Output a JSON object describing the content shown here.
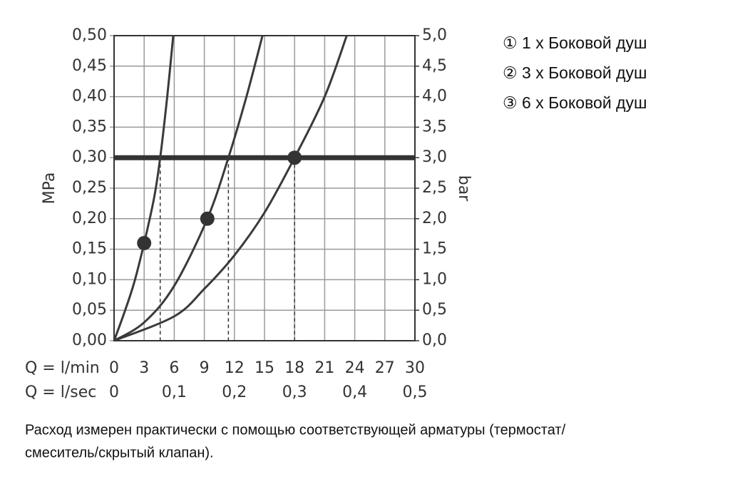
{
  "chart_data": {
    "type": "line",
    "x_label": "Q = l/min",
    "x2_label": "Q = l/sec",
    "y_label": "MPa",
    "y2_label": "bar",
    "xlim": [
      0,
      30
    ],
    "xticks": [
      0,
      3,
      6,
      9,
      12,
      15,
      18,
      21,
      24,
      27,
      30
    ],
    "x2lim": [
      0,
      0.5
    ],
    "x2ticks": [
      0,
      {
        "value": 0.1,
        "label": "0,1"
      },
      {
        "value": 0.2,
        "label": "0,2"
      },
      {
        "value": 0.3,
        "label": "0,3"
      },
      {
        "value": 0.4,
        "label": "0,4"
      },
      {
        "value": 0.5,
        "label": "0,5"
      }
    ],
    "ylim": [
      0,
      0.5
    ],
    "yticks": [
      {
        "value": 0,
        "label": "0,00"
      },
      {
        "value": 0.05,
        "label": "0,05"
      },
      {
        "value": 0.1,
        "label": "0,10"
      },
      {
        "value": 0.15,
        "label": "0,15"
      },
      {
        "value": 0.2,
        "label": "0,20"
      },
      {
        "value": 0.25,
        "label": "0,25"
      },
      {
        "value": 0.3,
        "label": "0,30"
      },
      {
        "value": 0.35,
        "label": "0,35"
      },
      {
        "value": 0.4,
        "label": "0,40"
      },
      {
        "value": 0.45,
        "label": "0,45"
      },
      {
        "value": 0.5,
        "label": "0,50"
      }
    ],
    "y2lim": [
      0,
      5
    ],
    "y2ticks": [
      {
        "value": 0,
        "label": "0,0"
      },
      {
        "value": 0.5,
        "label": "0,5"
      },
      {
        "value": 1,
        "label": "1,0"
      },
      {
        "value": 1.5,
        "label": "1,5"
      },
      {
        "value": 2,
        "label": "2,0"
      },
      {
        "value": 2.5,
        "label": "2,5"
      },
      {
        "value": 3,
        "label": "3,0"
      },
      {
        "value": 3.5,
        "label": "3,5"
      },
      {
        "value": 4,
        "label": "4,0"
      },
      {
        "value": 4.5,
        "label": "4,5"
      },
      {
        "value": 5,
        "label": "5,0"
      }
    ],
    "grid": true,
    "reference_line": 0.3,
    "series": [
      {
        "name": "① 1 x Боковой душ",
        "color": "#3a3a3a",
        "x": [
          0,
          1,
          2,
          3,
          4,
          4.6,
          5.3,
          5.9
        ],
        "values": [
          0,
          0.045,
          0.095,
          0.16,
          0.235,
          0.3,
          0.4,
          0.5
        ]
      },
      {
        "name": "② 3 x Боковой душ",
        "color": "#3a3a3a",
        "x": [
          0,
          3,
          6,
          9.3,
          11.4,
          13.2,
          14.8
        ],
        "values": [
          0,
          0.03,
          0.09,
          0.2,
          0.3,
          0.4,
          0.5
        ]
      },
      {
        "name": "③ 6 x Боковой душ",
        "color": "#3a3a3a",
        "x": [
          0,
          6,
          9,
          12,
          15,
          18,
          21,
          23.2
        ],
        "values": [
          0,
          0.04,
          0.085,
          0.14,
          0.21,
          0.3,
          0.4,
          0.5
        ]
      }
    ],
    "markers": [
      {
        "x": 3,
        "y": 0.16
      },
      {
        "x": 9.3,
        "y": 0.2
      },
      {
        "x": 18,
        "y": 0.3
      }
    ],
    "drop_lines": [
      4.6,
      11.4,
      18
    ],
    "note": [
      "Расход измерен практически с помощью соответствующей арматуры (термостат/",
      "смеситель/скрытый клапан)."
    ]
  }
}
